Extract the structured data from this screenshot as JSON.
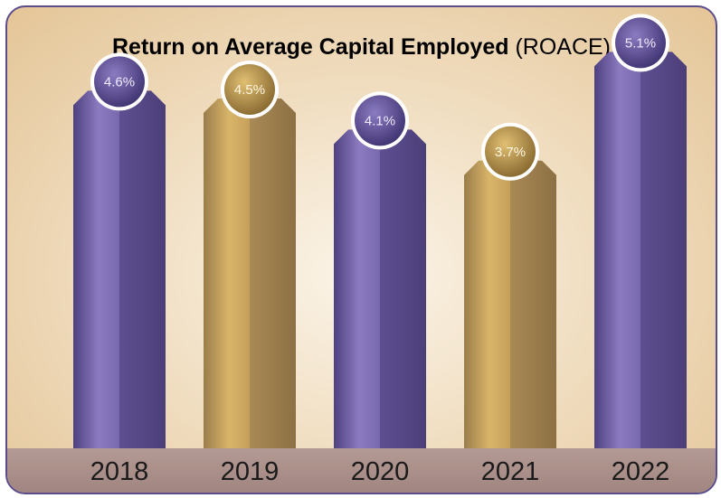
{
  "chart_data": {
    "type": "bar",
    "title_bold": "Return on Average Capital Employed",
    "title_suffix": "(ROACE)",
    "categories": [
      "2018",
      "2019",
      "2020",
      "2021",
      "2022"
    ],
    "values": [
      4.6,
      4.5,
      4.1,
      3.7,
      5.1
    ],
    "value_labels": [
      "4.6%",
      "4.5%",
      "4.1%",
      "3.7%",
      "5.1%"
    ],
    "bar_colors": [
      "purple",
      "gold",
      "purple",
      "gold",
      "purple"
    ],
    "xlabel": "",
    "ylabel": "",
    "grid": false,
    "legend": "none"
  },
  "colors": {
    "purple_light": "#8c7bc0",
    "purple_dark": "#4c3f78",
    "gold_light": "#d9b56a",
    "gold_dark": "#8d7044",
    "frame_border": "#5b4c8c"
  }
}
